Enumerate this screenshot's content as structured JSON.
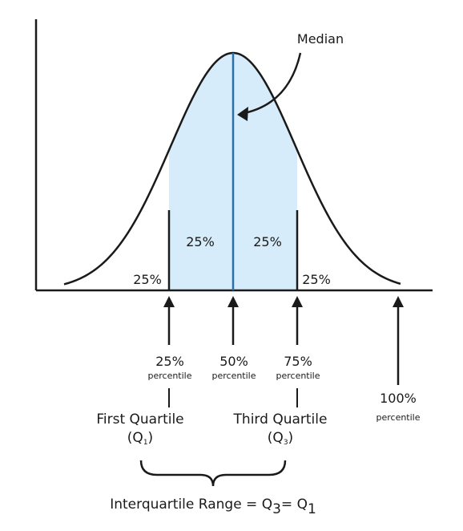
{
  "median_label": "Median",
  "regions": {
    "left_tail": "25%",
    "left_center": "25%",
    "right_center": "25%",
    "right_tail": "25%"
  },
  "markers": [
    {
      "value": "25%",
      "sub": "percentile"
    },
    {
      "value": "50%",
      "sub": "percentile"
    },
    {
      "value": "75%",
      "sub": "percentile"
    },
    {
      "value": "100%",
      "sub": "percentile"
    }
  ],
  "quartiles": {
    "first": {
      "name": "First Quartile",
      "symbol": "(Q",
      "sub": "1",
      "close": ")"
    },
    "third": {
      "name": "Third Quartile",
      "symbol": "(Q",
      "sub": "3",
      "close": ")"
    }
  },
  "iqr": {
    "text": "Interquartile Range = Q",
    "sub1": "3",
    "mid": "= Q",
    "sub2": "1"
  },
  "colors": {
    "fill": "#d6ecfb",
    "median_line": "#2a6fa8",
    "stroke": "#1a1a1a"
  }
}
